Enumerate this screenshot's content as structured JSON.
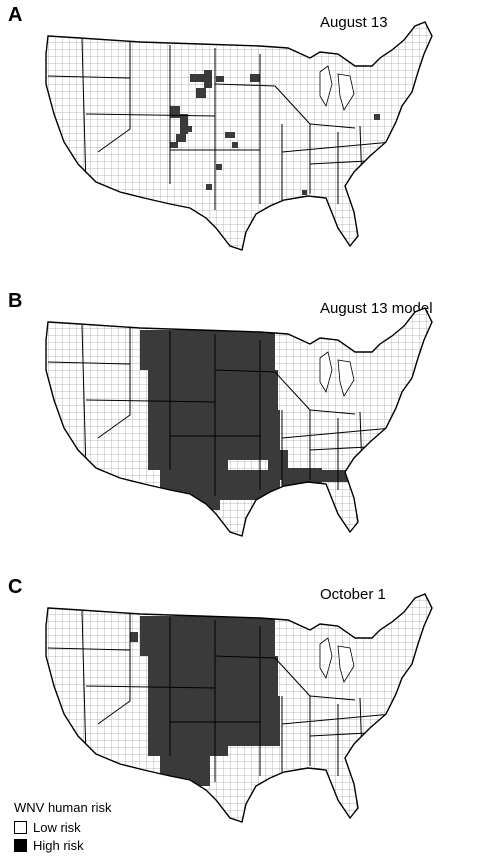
{
  "panels": [
    {
      "letter": "A",
      "title": "August 13",
      "high": [
        "mid-north",
        "central-front",
        "kansas-west",
        "texas-west-dots"
      ]
    },
    {
      "letter": "B",
      "title": "August 13 model",
      "high": [
        "north-plains",
        "front-range",
        "kansas-band",
        "texas-band",
        "gulf-band",
        "lower-miss"
      ]
    },
    {
      "letter": "C",
      "title": "October 1",
      "high": [
        "north-plains",
        "front-range",
        "kansas-band",
        "nm-block",
        "idaho-dots"
      ]
    }
  ],
  "legend": {
    "title": "WNV human risk",
    "items": [
      {
        "label": "Low risk",
        "color": "#ffffff"
      },
      {
        "label": "High risk",
        "color": "#000000"
      }
    ]
  },
  "colors": {
    "high": "#3a3a3a",
    "low": "#ffffff",
    "outline": "#000000"
  }
}
